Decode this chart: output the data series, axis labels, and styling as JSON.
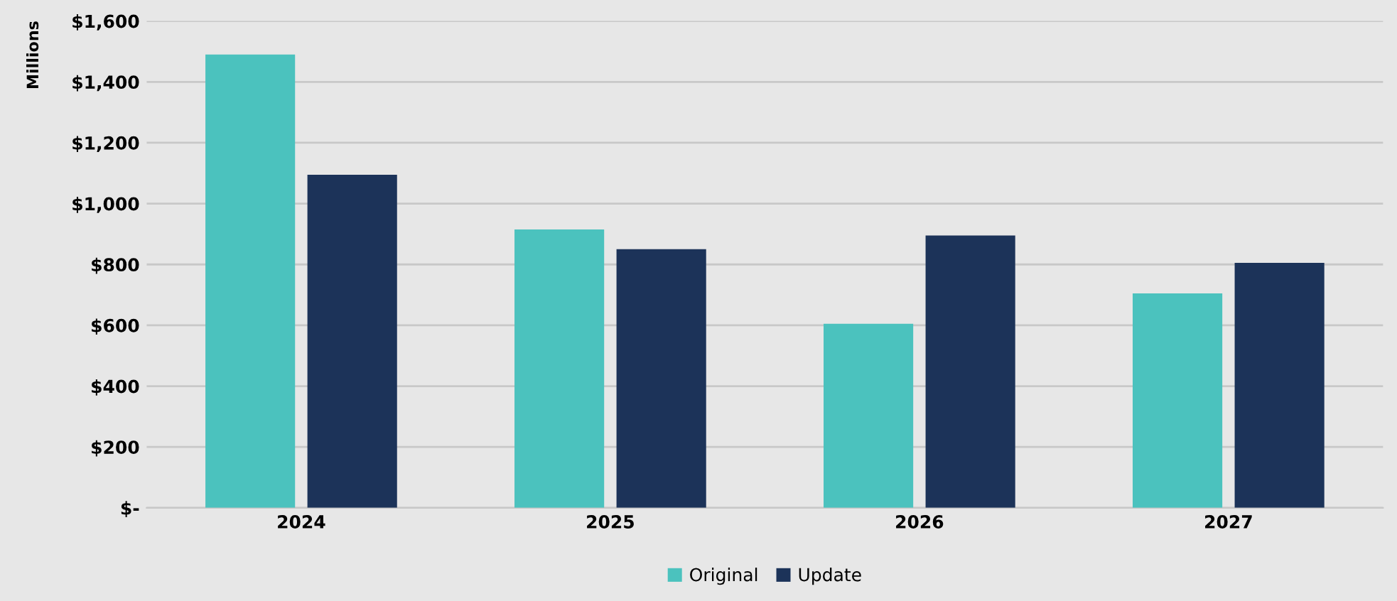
{
  "chart_data": {
    "type": "bar",
    "ylabel": "Millions",
    "categories": [
      "2024",
      "2025",
      "2026",
      "2027"
    ],
    "series": [
      {
        "name": "Original",
        "color": "#4bc2be",
        "values": [
          1490,
          915,
          605,
          705
        ]
      },
      {
        "name": "Update",
        "color": "#1c3359",
        "values": [
          1095,
          850,
          895,
          805
        ]
      }
    ],
    "ylim": [
      0,
      1600
    ],
    "yticks": [
      {
        "value": 0,
        "label": "$-"
      },
      {
        "value": 200,
        "label": "$200"
      },
      {
        "value": 400,
        "label": "$400"
      },
      {
        "value": 600,
        "label": "$600"
      },
      {
        "value": 800,
        "label": "$800"
      },
      {
        "value": 1000,
        "label": "$1,000"
      },
      {
        "value": 1200,
        "label": "$1,200"
      },
      {
        "value": 1400,
        "label": "$1,400"
      },
      {
        "value": 1600,
        "label": "$1,600"
      }
    ],
    "grid": "y",
    "legend": "bottom"
  }
}
